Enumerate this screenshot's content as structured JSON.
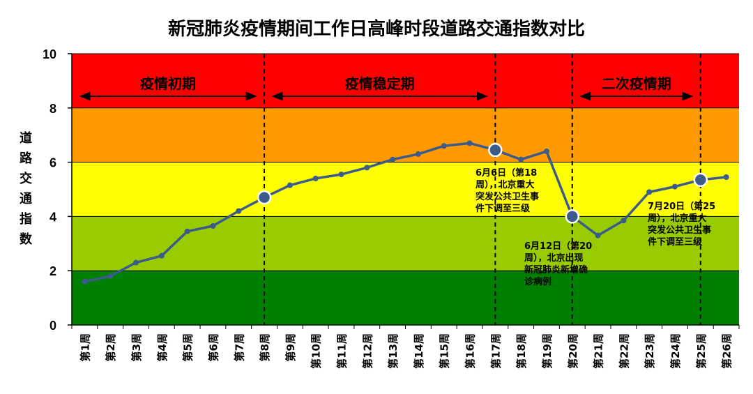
{
  "chart_data": {
    "type": "line",
    "title": "新冠肺炎疫情期间工作日高峰时段道路交通指数对比",
    "ylabel": "道路交通指数",
    "ylim": [
      0,
      10
    ],
    "yticks": [
      0,
      2,
      4,
      6,
      8,
      10
    ],
    "categories": [
      "第1周",
      "第2周",
      "第3周",
      "第4周",
      "第5周",
      "第6周",
      "第7周",
      "第8周",
      "第9周",
      "第10周",
      "第11周",
      "第12周",
      "第13周",
      "第14周",
      "第15周",
      "第16周",
      "第17周",
      "第18周",
      "第19周",
      "第20周",
      "第21周",
      "第22周",
      "第23周",
      "第24周",
      "第25周",
      "第26周"
    ],
    "values": [
      1.6,
      1.8,
      2.3,
      2.55,
      3.45,
      3.65,
      4.2,
      4.7,
      5.15,
      5.4,
      5.55,
      5.8,
      6.1,
      6.3,
      6.6,
      6.7,
      6.45,
      6.1,
      6.4,
      4.0,
      3.3,
      3.85,
      4.9,
      5.1,
      5.35,
      5.45
    ],
    "highlight_points": [
      8,
      17,
      20,
      25
    ],
    "bands": [
      {
        "from": 0,
        "to": 2,
        "color": "#008000"
      },
      {
        "from": 2,
        "to": 4,
        "color": "#99CC00"
      },
      {
        "from": 4,
        "to": 6,
        "color": "#FFFF00"
      },
      {
        "from": 6,
        "to": 8,
        "color": "#FF9900"
      },
      {
        "from": 8,
        "to": 10,
        "color": "#FF0000"
      }
    ],
    "line_color": "#3C5A8C",
    "phase_dividers": [
      8,
      17,
      20,
      25
    ],
    "phases": [
      {
        "label": "疫情初期",
        "from": 1,
        "to": 8
      },
      {
        "label": "疫情稳定期",
        "from": 8,
        "to": 17
      },
      {
        "label": "二次疫情期",
        "from": 20,
        "to": 25
      }
    ],
    "annotations": [
      {
        "week": 17,
        "lines": [
          "6月6日（第18",
          "周），北京重大",
          "突发公共卫生事",
          "件下调至三级"
        ]
      },
      {
        "week": 20,
        "lines": [
          "6月12日（第20",
          "周），北京出现",
          "新冠肺炎新增确",
          "诊病例"
        ]
      },
      {
        "week": 25,
        "lines": [
          "7月20日（第25",
          "周），北京重大",
          "突发公共卫生事",
          "件下调至三级"
        ]
      }
    ]
  }
}
